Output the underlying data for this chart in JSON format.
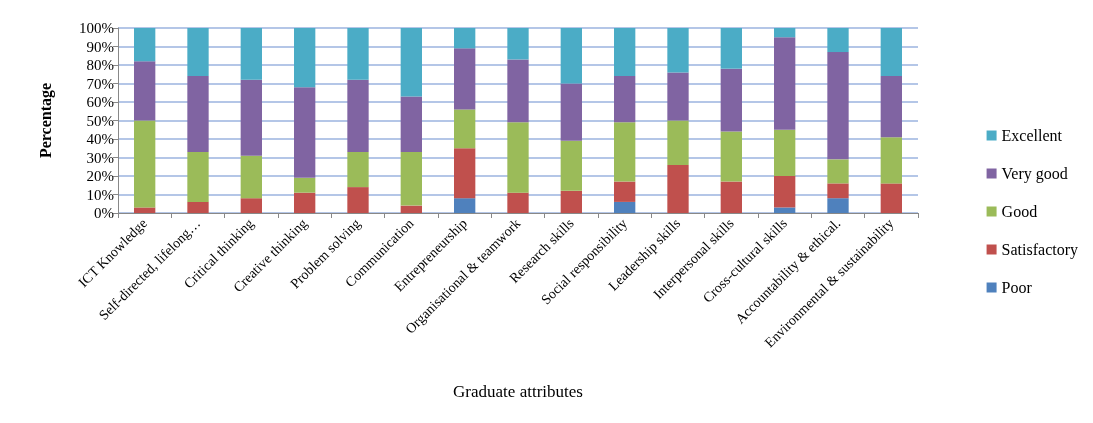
{
  "chart_data": {
    "type": "bar",
    "stacked": true,
    "xlabel": "Graduate attributes",
    "ylabel": "Percentage",
    "categories": [
      "ICT Knowledge",
      "Self-directed, lifelong…",
      "Critical thinking",
      "Creative thinking",
      "Problem solving",
      "Communication",
      "Entrepreneurship",
      "Organisational & teamwork",
      "Research skills",
      "Social responsibility",
      "Leadership skills",
      "Interpersonal skills",
      "Cross-cultural skills",
      "Accountability & ethical.",
      "Environmental & sustainability"
    ],
    "series": [
      {
        "name": "Poor",
        "color": "#4f81bd",
        "values": [
          0,
          0,
          0,
          0,
          0,
          0,
          8,
          0,
          0,
          6,
          0,
          0,
          3,
          8,
          0
        ]
      },
      {
        "name": "Satisfactory",
        "color": "#c0504d",
        "values": [
          3,
          6,
          8,
          11,
          14,
          4,
          27,
          11,
          12,
          11,
          26,
          17,
          17,
          8,
          16
        ]
      },
      {
        "name": "Good",
        "color": "#9bbb59",
        "values": [
          47,
          27,
          23,
          8,
          19,
          29,
          21,
          38,
          27,
          32,
          24,
          27,
          25,
          13,
          25
        ]
      },
      {
        "name": "Very good",
        "color": "#8064a2",
        "values": [
          32,
          41,
          41,
          49,
          39,
          30,
          33,
          34,
          31,
          25,
          26,
          34,
          50,
          58,
          33
        ]
      },
      {
        "name": "Excellent",
        "color": "#4bacc6",
        "values": [
          18,
          26,
          28,
          32,
          28,
          37,
          11,
          17,
          30,
          26,
          24,
          22,
          5,
          13,
          26
        ]
      }
    ],
    "ylim": [
      0,
      100
    ],
    "yticks": [
      {
        "value": 0,
        "label": "0%"
      },
      {
        "value": 10,
        "label": "10%"
      },
      {
        "value": 20,
        "label": "20%"
      },
      {
        "value": 30,
        "label": "30%"
      },
      {
        "value": 40,
        "label": "40%"
      },
      {
        "value": 50,
        "label": "50%"
      },
      {
        "value": 60,
        "label": "60%"
      },
      {
        "value": 70,
        "label": "70%"
      },
      {
        "value": 80,
        "label": "80%"
      },
      {
        "value": 90,
        "label": "90%"
      },
      {
        "value": 100,
        "label": "100%"
      }
    ],
    "grid": "y",
    "legend": "right"
  }
}
